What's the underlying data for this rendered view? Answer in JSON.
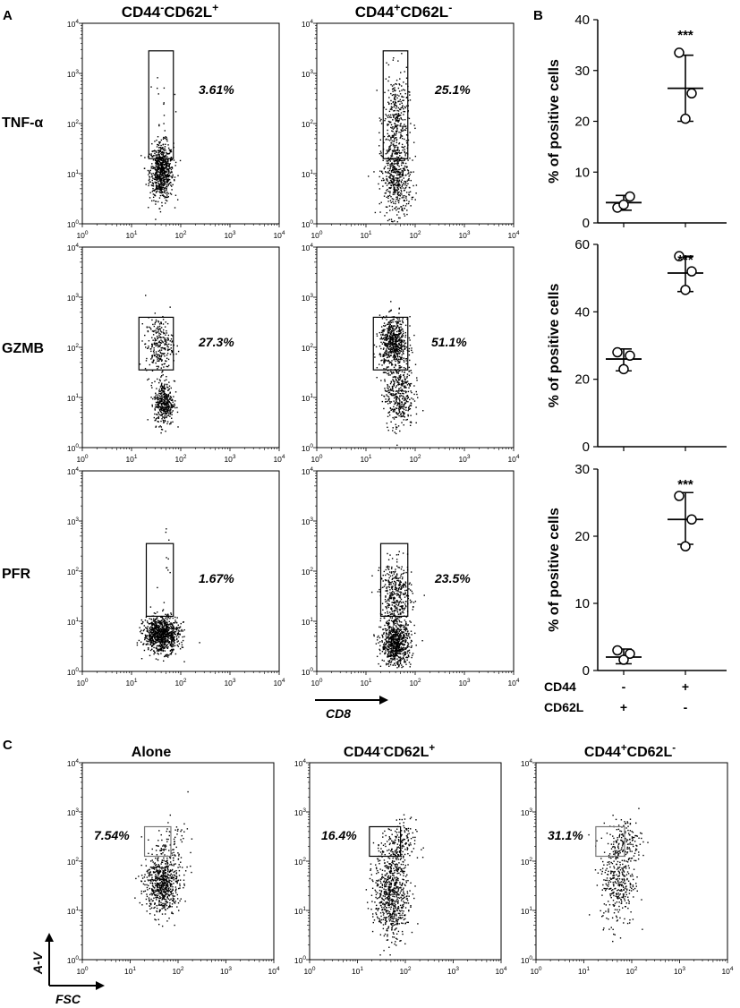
{
  "panels": {
    "A": "A",
    "B": "B",
    "C": "C"
  },
  "column_headers_A": [
    {
      "base1": "CD44",
      "sup1": "-",
      "base2": "CD62L",
      "sup2": "+"
    },
    {
      "base1": "CD44",
      "sup1": "+",
      "base2": "CD62L",
      "sup2": "-"
    }
  ],
  "row_labels_A": [
    "TNF-α",
    "GZMB",
    "PFR"
  ],
  "axis_ticks": {
    "base": "10",
    "exponents": [
      "0",
      "1",
      "2",
      "3",
      "4"
    ]
  },
  "axis_label_A_x": "CD8",
  "axis_labels_C": {
    "x": "FSC",
    "y": "A-V"
  },
  "column_headers_C": [
    {
      "plain": "Alone"
    },
    {
      "base1": "CD44",
      "sup1": "-",
      "base2": "CD62L",
      "sup2": "+"
    },
    {
      "base1": "CD44",
      "sup1": "+",
      "base2": "CD62L",
      "sup2": "-"
    }
  ],
  "chart_data": [
    {
      "type": "scatter",
      "panel": "A",
      "description_rows": [
        "TNF-α",
        "GZMB",
        "PFR"
      ],
      "gate_percentages": [
        [
          "3.61%",
          "25.1%"
        ],
        [
          "27.3%",
          "51.1%"
        ],
        [
          "1.67%",
          "23.5%"
        ]
      ],
      "xlabel": "CD8",
      "scale": "log",
      "xlim": [
        1,
        10000
      ],
      "ylim": [
        1,
        10000
      ]
    },
    {
      "type": "scatter",
      "panel": "B",
      "ylabel": "% of positive cells",
      "group_rows": [
        {
          "label": "CD44",
          "values": [
            "-",
            "+"
          ]
        },
        {
          "label": "CD62L",
          "values": [
            "+",
            "-"
          ]
        }
      ],
      "plots": [
        {
          "ylim": [
            0,
            40
          ],
          "yticks": [
            0,
            10,
            20,
            30,
            40
          ],
          "groups": [
            {
              "points": [
                3.0,
                5.2,
                3.6
              ],
              "mean": 4.0,
              "sd_low": 2.5,
              "sd_high": 5.4
            },
            {
              "points": [
                33.5,
                25.5,
                20.5
              ],
              "mean": 26.5,
              "sd_low": 20.0,
              "sd_high": 33.0
            }
          ],
          "significance": "***"
        },
        {
          "ylim": [
            0,
            60
          ],
          "yticks": [
            0,
            20,
            40,
            60
          ],
          "groups": [
            {
              "points": [
                28.0,
                27.0,
                23.0
              ],
              "mean": 26.0,
              "sd_low": 22.5,
              "sd_high": 29.0
            },
            {
              "points": [
                56.5,
                52.0,
                46.5
              ],
              "mean": 51.5,
              "sd_low": 46.0,
              "sd_high": 56.5
            }
          ],
          "significance": "***"
        },
        {
          "ylim": [
            0,
            30
          ],
          "yticks": [
            0,
            10,
            20,
            30
          ],
          "groups": [
            {
              "points": [
                3.0,
                2.5,
                1.6
              ],
              "mean": 2.0,
              "sd_low": 1.0,
              "sd_high": 3.2
            },
            {
              "points": [
                26.0,
                22.5,
                18.5
              ],
              "mean": 22.5,
              "sd_low": 18.8,
              "sd_high": 26.5
            }
          ],
          "significance": "***"
        }
      ]
    },
    {
      "type": "scatter",
      "panel": "C",
      "groups": [
        "Alone",
        "CD44-CD62L+",
        "CD44+CD62L-"
      ],
      "gate_percentages": [
        "7.54%",
        "16.4%",
        "31.1%"
      ],
      "xlabel": "FSC",
      "ylabel": "A-V",
      "scale": "log",
      "xlim": [
        1,
        10000
      ],
      "ylim": [
        1,
        10000
      ]
    }
  ]
}
